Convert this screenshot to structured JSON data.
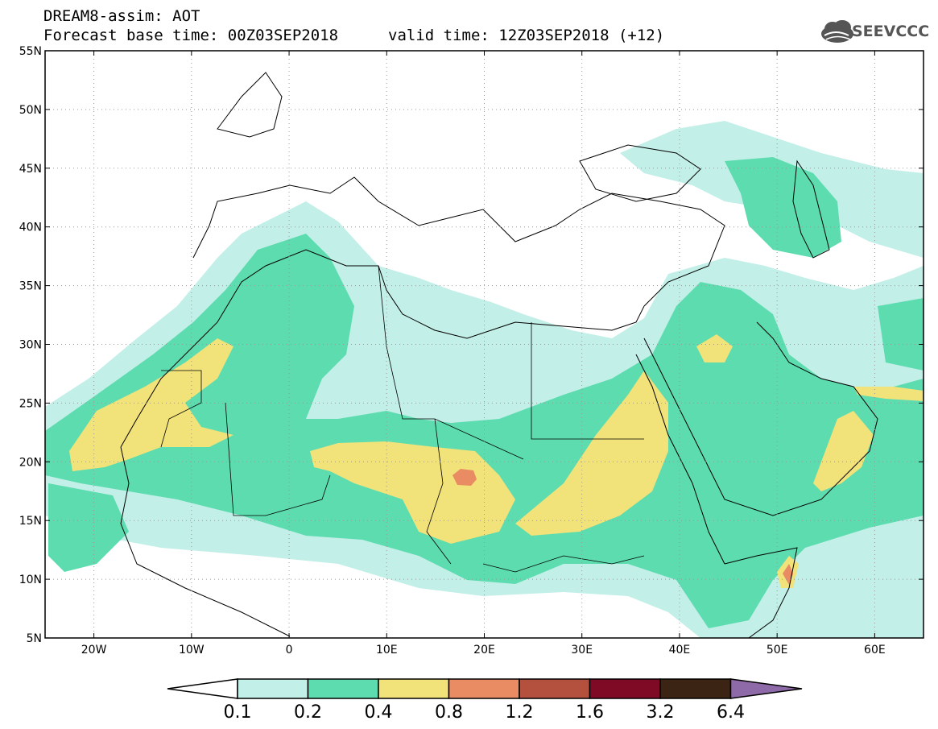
{
  "title": {
    "line1": "DREAM8-assim: AOT",
    "line2": "Forecast base time: 00Z03SEP2018",
    "valid_time": "valid time: 12Z03SEP2018 (+12)"
  },
  "logo": {
    "text": "SEEVCCC",
    "icon": "cloud-icon"
  },
  "map": {
    "lon_range": [
      -25,
      65
    ],
    "lat_range": [
      5,
      55
    ],
    "lon_ticks": [
      {
        "value": -20,
        "label": "20W"
      },
      {
        "value": -10,
        "label": "10W"
      },
      {
        "value": 0,
        "label": "0"
      },
      {
        "value": 10,
        "label": "10E"
      },
      {
        "value": 20,
        "label": "20E"
      },
      {
        "value": 30,
        "label": "30E"
      },
      {
        "value": 40,
        "label": "40E"
      },
      {
        "value": 50,
        "label": "50E"
      },
      {
        "value": 60,
        "label": "60E"
      }
    ],
    "lat_ticks": [
      {
        "value": 55,
        "label": "55N"
      },
      {
        "value": 50,
        "label": "50N"
      },
      {
        "value": 45,
        "label": "45N"
      },
      {
        "value": 40,
        "label": "40N"
      },
      {
        "value": 35,
        "label": "35N"
      },
      {
        "value": 30,
        "label": "30N"
      },
      {
        "value": 25,
        "label": "25N"
      },
      {
        "value": 20,
        "label": "20N"
      },
      {
        "value": 15,
        "label": "15N"
      },
      {
        "value": 10,
        "label": "10N"
      },
      {
        "value": 5,
        "label": "5N"
      }
    ],
    "grid": "dotted"
  },
  "colorbar": {
    "levels": [
      "0.1",
      "0.2",
      "0.4",
      "0.8",
      "1.2",
      "1.6",
      "3.2",
      "6.4"
    ],
    "colors": {
      "below": "#ffffff",
      "c1": "#c2efe7",
      "c2": "#5ddcb0",
      "c3": "#f2e27a",
      "c4": "#e98b63",
      "c5": "#b4513e",
      "c6": "#7f0a26",
      "c7": "#3b2414",
      "above": "#8f6aa8"
    }
  }
}
